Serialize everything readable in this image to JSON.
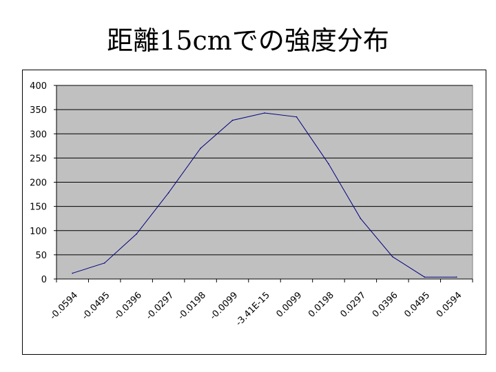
{
  "title": "距離15cmでの強度分布",
  "chart_data": {
    "type": "line",
    "title": "距離15cmでの強度分布",
    "xlabel": "",
    "ylabel": "",
    "categories": [
      "-0.0594",
      "-0.0495",
      "-0.0396",
      "-0.0297",
      "-0.0198",
      "-0.0099",
      "-3.41E-15",
      "0.0099",
      "0.0198",
      "0.0297",
      "0.0396",
      "0.0495",
      "0.0594"
    ],
    "series": [
      {
        "values": [
          12,
          33,
          93,
          178,
          270,
          328,
          343,
          335,
          238,
          125,
          46,
          4,
          4
        ]
      }
    ],
    "ylim": [
      0,
      400
    ],
    "yticks": [
      0,
      50,
      100,
      150,
      200,
      250,
      300,
      350,
      400
    ],
    "grid": true,
    "legend": "none",
    "colors": {
      "plot_bg": "#c0c0c0",
      "line": "#000080",
      "grid": "#000000"
    }
  }
}
